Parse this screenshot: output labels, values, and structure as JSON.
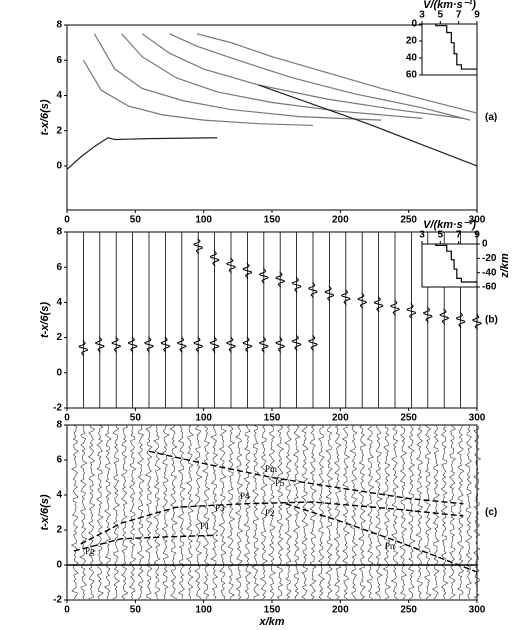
{
  "chart_data": [
    {
      "type": "line",
      "label": "(a)",
      "y_label": "t-x/6(s)",
      "xlim": [
        0,
        300
      ],
      "xticks": [
        0,
        50,
        100,
        150,
        200,
        250,
        300
      ],
      "ylim": [
        -2.5,
        8
      ],
      "yticks": [
        0,
        2,
        4,
        6,
        8
      ],
      "series": [
        {
          "color": "#222222",
          "x": [
            0,
            10,
            20,
            30,
            35,
            60,
            110
          ],
          "values": [
            -0.2,
            0.5,
            1.1,
            1.6,
            1.5,
            1.55,
            1.6
          ]
        },
        {
          "color": "#777777",
          "x": [
            12,
            25,
            45,
            70,
            100,
            140,
            180
          ],
          "values": [
            6.0,
            4.3,
            3.4,
            2.9,
            2.6,
            2.4,
            2.3
          ]
        },
        {
          "color": "#777777",
          "x": [
            20,
            35,
            55,
            85,
            120,
            170,
            230
          ],
          "values": [
            7.5,
            5.5,
            4.4,
            3.7,
            3.2,
            2.8,
            2.6
          ]
        },
        {
          "color": "#777777",
          "x": [
            40,
            55,
            80,
            110,
            150,
            200,
            260
          ],
          "values": [
            7.5,
            6.2,
            5.0,
            4.2,
            3.6,
            3.1,
            2.7
          ]
        },
        {
          "color": "#777777",
          "x": [
            55,
            75,
            100,
            140,
            190,
            240,
            290
          ],
          "values": [
            7.5,
            6.4,
            5.5,
            4.6,
            3.8,
            3.2,
            2.7
          ]
        },
        {
          "color": "#777777",
          "x": [
            75,
            95,
            125,
            165,
            210,
            260,
            295
          ],
          "values": [
            7.5,
            6.8,
            6.0,
            5.0,
            4.1,
            3.3,
            2.6
          ]
        },
        {
          "color": "#777777",
          "x": [
            95,
            120,
            150,
            190,
            230,
            270,
            300
          ],
          "values": [
            7.5,
            7.0,
            6.2,
            5.3,
            4.4,
            3.6,
            3.0
          ]
        },
        {
          "color": "#222222",
          "x": [
            140,
            180,
            220,
            260,
            300
          ],
          "values": [
            4.6,
            3.5,
            2.4,
            1.2,
            0.0
          ]
        }
      ]
    },
    {
      "type": "line",
      "x_label": "V/(km·s⁻¹)",
      "y_inverted": true,
      "xlim": [
        3,
        9
      ],
      "xticks": [
        3,
        5,
        7,
        9
      ],
      "ylim": [
        0,
        60
      ],
      "yticks": [
        0,
        20,
        40,
        60
      ],
      "series": [
        {
          "color": "#000000",
          "x": [
            4.5,
            4.5,
            5.7,
            5.7,
            6.2,
            6.2,
            6.5,
            6.5,
            6.8,
            6.8,
            7.3,
            7.3,
            9
          ],
          "values": [
            0,
            2,
            2,
            10,
            10,
            22,
            22,
            35,
            35,
            48,
            48,
            53,
            53
          ]
        }
      ]
    },
    {
      "type": "seismogram",
      "label": "(b)",
      "y_label": "t-x/6(s)",
      "xlim": [
        0,
        300
      ],
      "xticks": [
        0,
        50,
        100,
        150,
        200,
        250,
        300
      ],
      "ylim": [
        -2,
        8
      ],
      "yticks": [
        -2,
        0,
        2,
        4,
        6,
        8
      ],
      "x": [
        12,
        24,
        36,
        48,
        60,
        72,
        84,
        96,
        108,
        120,
        132,
        144,
        156,
        168,
        180,
        192,
        204,
        216,
        228,
        240,
        252,
        264,
        276,
        288,
        300
      ],
      "series": [
        {
          "color": "#000000",
          "values": [
            1.4,
            1.6,
            1.6,
            1.6,
            1.6,
            1.6,
            1.6,
            1.6,
            1.6,
            1.6,
            1.6,
            1.6,
            1.6,
            1.7,
            1.7,
            null,
            null,
            null,
            null,
            null,
            null,
            null,
            null,
            null,
            null
          ]
        },
        {
          "color": "#000000",
          "values": [
            null,
            null,
            null,
            null,
            null,
            null,
            null,
            7.2,
            6.5,
            6.1,
            5.8,
            5.5,
            5.3,
            5.0,
            4.7,
            4.5,
            4.3,
            4.1,
            3.9,
            3.7,
            3.5,
            3.3,
            3.2,
            3.0,
            2.9
          ]
        }
      ]
    },
    {
      "type": "line",
      "x_label": "V/(km·s⁻¹)",
      "y_label": "z/km",
      "xlim": [
        3,
        9
      ],
      "xticks": [
        3,
        5,
        7,
        9
      ],
      "ylim": [
        -60,
        0
      ],
      "yticks": [
        0,
        -20,
        -40,
        -60
      ],
      "series": [
        {
          "color": "#000000",
          "x": [
            4.5,
            4.5,
            5.7,
            5.7,
            6.2,
            6.2,
            6.5,
            6.5,
            6.8,
            6.8,
            7.3,
            7.3,
            9
          ],
          "values": [
            0,
            -2,
            -2,
            -10,
            -10,
            -22,
            -22,
            -35,
            -35,
            -48,
            -48,
            -53,
            -53
          ]
        }
      ]
    },
    {
      "type": "record",
      "label": "(c)",
      "y_label": "t-x/6(s)",
      "x_label": "x/km",
      "xlim": [
        0,
        300
      ],
      "xticks": [
        0,
        50,
        100,
        150,
        200,
        250,
        300
      ],
      "ylim": [
        -2,
        8
      ],
      "yticks": [
        -2,
        0,
        2,
        4,
        6,
        8
      ],
      "x": [
        6,
        12,
        18,
        24,
        30,
        36,
        42,
        48,
        54,
        60,
        66,
        72,
        78,
        84,
        90,
        96,
        102,
        108,
        114,
        120,
        126,
        132,
        138,
        144,
        150,
        156,
        162,
        168,
        174,
        180,
        186,
        192,
        198,
        204,
        210,
        216,
        222,
        228,
        234,
        240,
        246,
        252,
        258,
        264,
        270,
        276,
        282,
        288,
        294,
        300
      ],
      "series": [
        {
          "color": "#000000",
          "x": [
            5,
            20,
            40,
            70,
            110
          ],
          "values": [
            0.8,
            1.1,
            1.5,
            1.6,
            1.7
          ]
        },
        {
          "color": "#000000",
          "x": [
            10,
            40,
            80,
            130,
            180,
            240,
            290
          ],
          "values": [
            1.2,
            2.4,
            3.3,
            3.5,
            3.6,
            3.2,
            2.8
          ]
        },
        {
          "color": "#000000",
          "x": [
            60,
            100,
            150,
            200,
            250,
            290
          ],
          "values": [
            6.5,
            5.8,
            5.0,
            4.4,
            3.8,
            3.5
          ]
        },
        {
          "color": "#000000",
          "x": [
            160,
            200,
            240,
            280,
            300
          ],
          "values": [
            3.5,
            2.5,
            1.4,
            0.2,
            -0.4
          ]
        }
      ],
      "annotations": [
        "Pg",
        "Pm",
        "P5",
        "P4",
        "P3",
        "P2",
        "P1",
        "Pn"
      ]
    }
  ]
}
